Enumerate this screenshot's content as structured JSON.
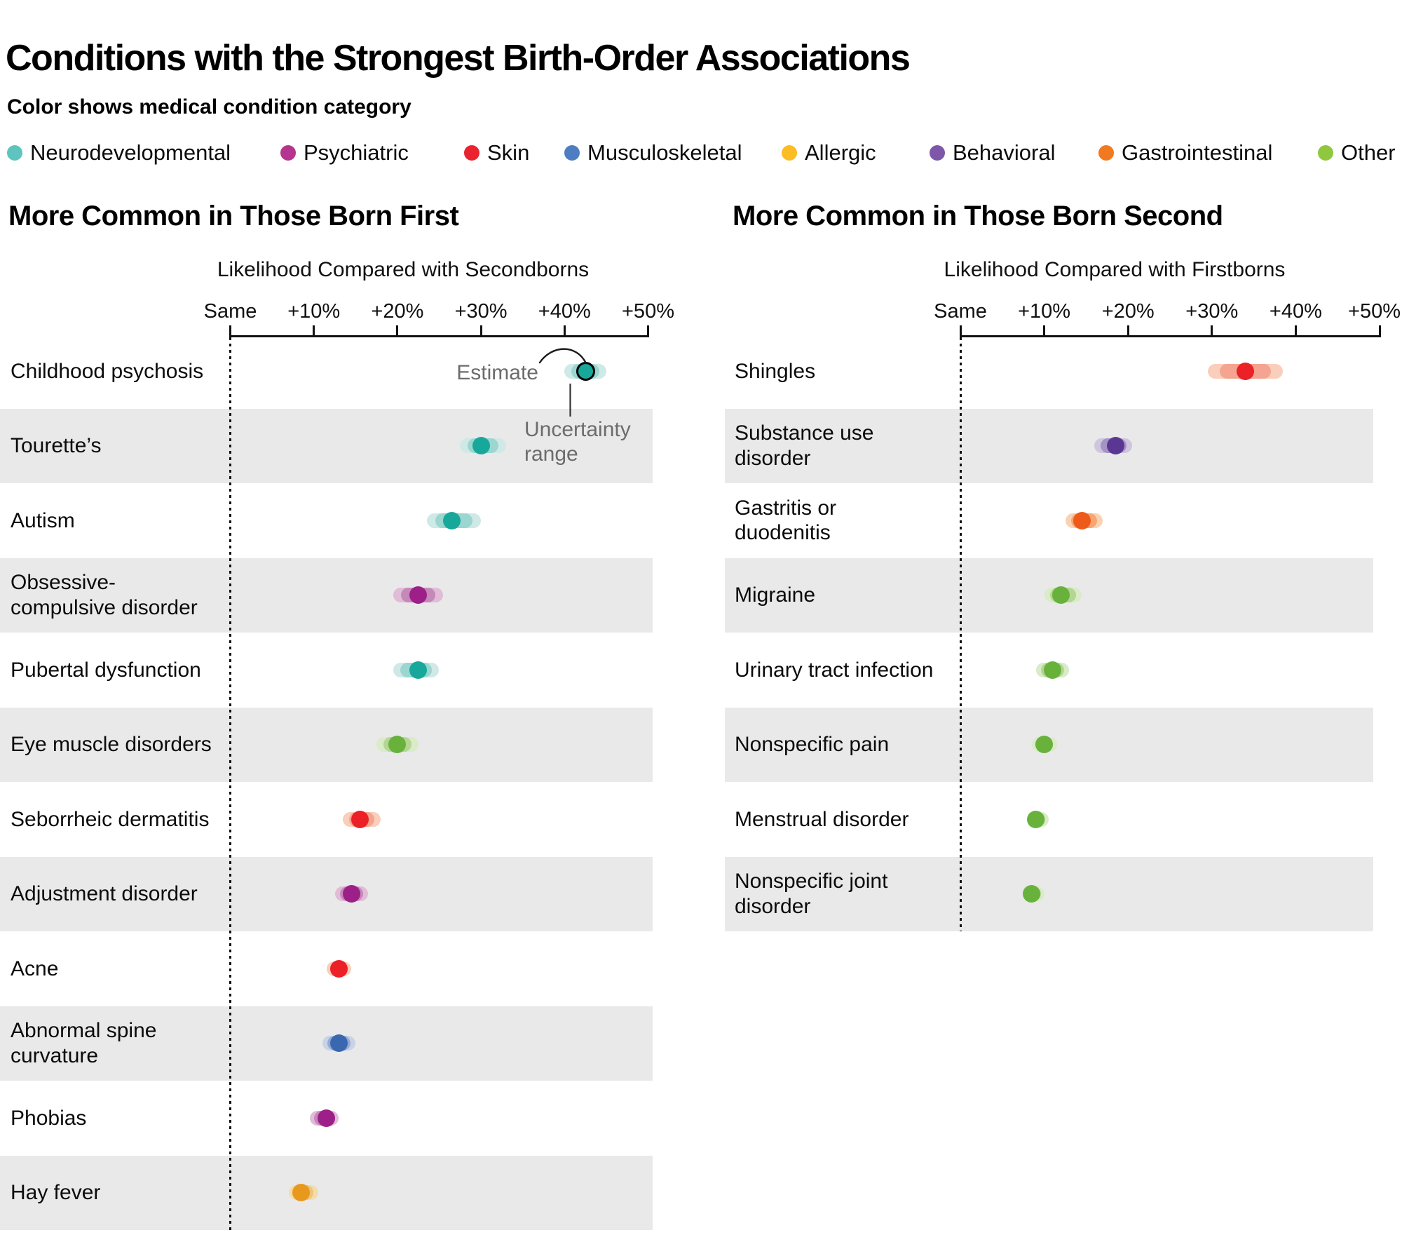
{
  "title": "Conditions with the Strongest Birth-Order Associations",
  "legend": {
    "heading": "Color shows medical condition category",
    "categories": [
      {
        "label": "Neurodevelopmental",
        "color": "#5ec4bd",
        "dot_color": "#18a89b",
        "band_color": "#cfe9e6",
        "band_inner_color": "#9bd6d0"
      },
      {
        "label": "Psychiatric",
        "color": "#b5348f",
        "dot_color": "#9d2089",
        "band_color": "#e0bcd7",
        "band_inner_color": "#c489b9"
      },
      {
        "label": "Skin",
        "color": "#ea2330",
        "dot_color": "#ec2027",
        "band_color": "#f9ceba",
        "band_inner_color": "#f4a490"
      },
      {
        "label": "Musculoskeletal",
        "color": "#4e7ec1",
        "dot_color": "#3a68b0",
        "band_color": "#c9d3e7",
        "band_inner_color": "#96abd1"
      },
      {
        "label": "Allergic",
        "color": "#fbbd23",
        "dot_color": "#e8991d",
        "band_color": "#f3dcab",
        "band_inner_color": "#edc577"
      },
      {
        "label": "Behavioral",
        "color": "#7e57a8",
        "dot_color": "#5b3794",
        "band_color": "#cfc5df",
        "band_inner_color": "#a493c3"
      },
      {
        "label": "Gastrointestinal",
        "color": "#f1791f",
        "dot_color": "#ee5a1a",
        "band_color": "#fad2b2",
        "band_inner_color": "#f6a674"
      },
      {
        "label": "Other",
        "color": "#90c73e",
        "dot_color": "#68b23c",
        "band_color": "#d9ebc7",
        "band_inner_color": "#b3d693"
      }
    ]
  },
  "annotation": {
    "estimate_label": "Estimate",
    "uncertainty_label": "Uncertainty\nrange"
  },
  "chart_data": {
    "type": "scatter",
    "subtype": "dot-with-uncertainty-interval",
    "unit": "percent greater likelihood",
    "panels": [
      {
        "header": "More Common in Those Born First",
        "axis_title": "Likelihood Compared with Secondborns",
        "tick_labels": [
          "Same",
          "+10%",
          "+20%",
          "+30%",
          "+40%",
          "+50%"
        ],
        "tick_values": [
          0,
          10,
          20,
          30,
          40,
          50
        ],
        "xlim": [
          0,
          50
        ],
        "rows": [
          {
            "label": "Childhood psychosis",
            "category": "Neurodevelopmental",
            "estimate_pct": 42.5,
            "low_pct": 40,
            "high_pct": 45,
            "annotated": true
          },
          {
            "label": "Tourette’s",
            "category": "Neurodevelopmental",
            "estimate_pct": 30,
            "low_pct": 27.5,
            "high_pct": 33
          },
          {
            "label": "Autism",
            "category": "Neurodevelopmental",
            "estimate_pct": 26.5,
            "low_pct": 23.5,
            "high_pct": 30
          },
          {
            "label": "Obsessive-\ncompulsive disorder",
            "category": "Psychiatric",
            "estimate_pct": 22.5,
            "low_pct": 19.5,
            "high_pct": 25.5
          },
          {
            "label": "Pubertal dysfunction",
            "category": "Neurodevelopmental",
            "estimate_pct": 22.5,
            "low_pct": 19.5,
            "high_pct": 25
          },
          {
            "label": "Eye muscle disorders",
            "category": "Other",
            "estimate_pct": 20,
            "low_pct": 17.5,
            "high_pct": 22.5
          },
          {
            "label": "Seborrheic dermatitis",
            "category": "Skin",
            "estimate_pct": 15.5,
            "low_pct": 13.5,
            "high_pct": 18
          },
          {
            "label": "Adjustment disorder",
            "category": "Psychiatric",
            "estimate_pct": 14.5,
            "low_pct": 12.5,
            "high_pct": 16.5
          },
          {
            "label": "Acne",
            "category": "Skin",
            "estimate_pct": 13,
            "low_pct": 11.5,
            "high_pct": 14.5
          },
          {
            "label": "Abnormal spine\ncurvature",
            "category": "Musculoskeletal",
            "estimate_pct": 13,
            "low_pct": 11,
            "high_pct": 15
          },
          {
            "label": "Phobias",
            "category": "Psychiatric",
            "estimate_pct": 11.5,
            "low_pct": 9.5,
            "high_pct": 13
          },
          {
            "label": "Hay fever",
            "category": "Allergic",
            "estimate_pct": 8.5,
            "low_pct": 7,
            "high_pct": 10.5
          }
        ]
      },
      {
        "header": "More Common in Those Born Second",
        "axis_title": "Likelihood Compared with Firstborns",
        "tick_labels": [
          "Same",
          "+10%",
          "+20%",
          "+30%",
          "+40%",
          "+50%"
        ],
        "tick_values": [
          0,
          10,
          20,
          30,
          40,
          50
        ],
        "xlim": [
          0,
          50
        ],
        "rows": [
          {
            "label": "Shingles",
            "category": "Skin",
            "estimate_pct": 34,
            "low_pct": 29.5,
            "high_pct": 38.5
          },
          {
            "label": "Substance use\ndisorder",
            "category": "Behavioral",
            "estimate_pct": 18.5,
            "low_pct": 16,
            "high_pct": 20.5
          },
          {
            "label": "Gastritis or\nduodenitis",
            "category": "Gastrointestinal",
            "estimate_pct": 14.5,
            "low_pct": 12.5,
            "high_pct": 17
          },
          {
            "label": "Migraine",
            "category": "Other",
            "estimate_pct": 12,
            "low_pct": 10,
            "high_pct": 14.5
          },
          {
            "label": "Urinary tract infection",
            "category": "Other",
            "estimate_pct": 11,
            "low_pct": 9,
            "high_pct": 13
          },
          {
            "label": "Nonspecific pain",
            "category": "Other",
            "estimate_pct": 10,
            "low_pct": 8.5,
            "high_pct": 11.5
          },
          {
            "label": "Menstrual disorder",
            "category": "Other",
            "estimate_pct": 9,
            "low_pct": 8,
            "high_pct": 10.5
          },
          {
            "label": "Nonspecific joint\ndisorder",
            "category": "Other",
            "estimate_pct": 8.5,
            "low_pct": 7.5,
            "high_pct": 10
          }
        ]
      }
    ]
  }
}
